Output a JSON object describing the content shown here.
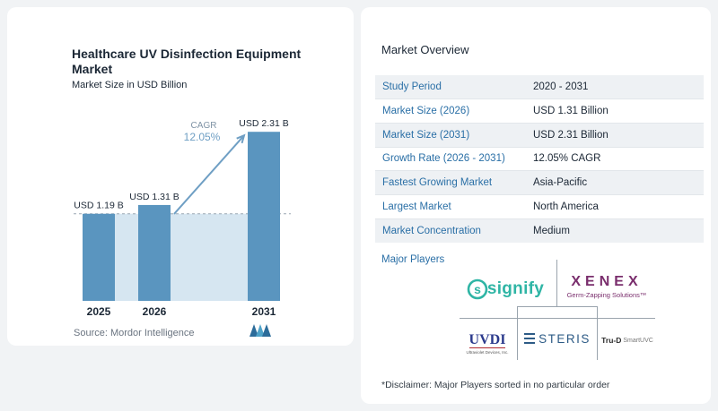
{
  "chart_data": {
    "type": "bar",
    "title": "Healthcare UV Disinfection Equipment Market",
    "subtitle": "Market Size in USD Billion",
    "categories": [
      "2025",
      "2026",
      "2031"
    ],
    "values": [
      1.19,
      1.31,
      2.31
    ],
    "value_labels": [
      "USD 1.19 B",
      "USD 1.31 B",
      "USD 2.31 B"
    ],
    "ylim": [
      0,
      2.5
    ],
    "grid": false,
    "cagr_label": "CAGR",
    "cagr_value": "12.05%",
    "colors": {
      "bar": "#5a95bf",
      "highlight": "#d6e6f1",
      "arrow": "#6f9fc4",
      "baseline_dash": "#9aa7b3"
    }
  },
  "source": "Source:  Mordor Intelligence",
  "logo_icon": "mordor-intelligence-logo-icon",
  "overview": {
    "title": "Market Overview",
    "rows": [
      {
        "label": "Study Period",
        "value": "2020 - 2031"
      },
      {
        "label": "Market Size (2026)",
        "value": "USD 1.31 Billion"
      },
      {
        "label": "Market Size (2031)",
        "value": "USD 2.31 Billion"
      },
      {
        "label": "Growth Rate (2026 - 2031)",
        "value": "12.05% CAGR"
      },
      {
        "label": "Fastest Growing Market",
        "value": "Asia-Pacific"
      },
      {
        "label": "Largest Market",
        "value": "North America"
      },
      {
        "label": "Market Concentration",
        "value": "Medium"
      }
    ]
  },
  "players": {
    "title": "Major Players",
    "signify": "signify",
    "xenex": "XENEX",
    "xenex_tagline": "Germ-Zapping Solutions™",
    "uvdi": "UVDI",
    "uvdi_tagline": "Ultraviolet Devices, Inc.",
    "steris": "STERIS",
    "truD": "Tru-D",
    "truD_suffix": "SmartUVC"
  },
  "disclaimer": "*Disclaimer: Major Players sorted in no particular order",
  "accent_color": "#2a6fa6"
}
